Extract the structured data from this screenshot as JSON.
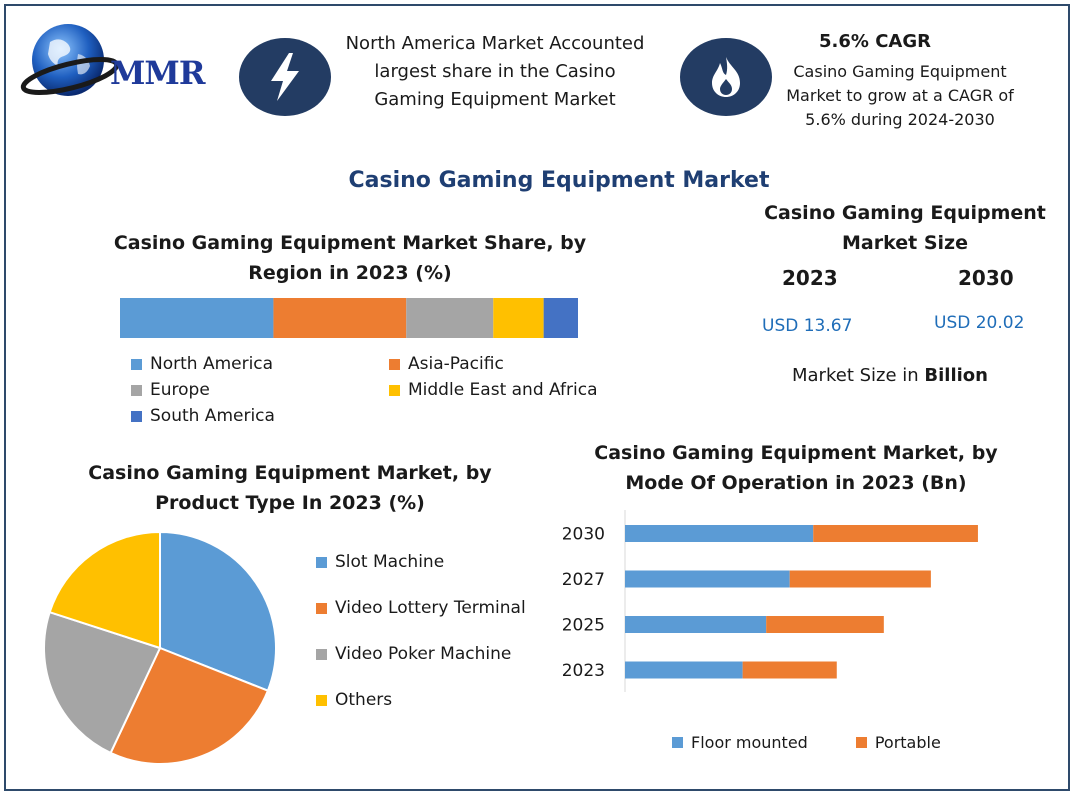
{
  "header": {
    "logo_text": "MMR",
    "region_text": "North America Market Accounted largest share in the Casino Gaming Equipment Market",
    "cagr_title": "5.6% CAGR",
    "cagr_text": "Casino Gaming Equipment Market to grow at a CAGR of 5.6% during 2024-2030",
    "icons": [
      "globe-icon",
      "lightning-icon",
      "flame-icon"
    ]
  },
  "main_title": "Casino Gaming Equipment Market",
  "market_size": {
    "title": "Casino Gaming Equipment Market Size",
    "year1": "2023",
    "year2": "2030",
    "value1": "USD 13.67",
    "value2": "USD 20.02",
    "note_prefix": "Market Size in ",
    "note_bold": "Billion"
  },
  "colors": {
    "north_america": "#5b9bd5",
    "asia_pacific": "#ed7d31",
    "europe": "#a5a5a5",
    "middle_east_africa": "#ffc000",
    "south_america": "#4472c4",
    "icon_circle": "#233c63"
  },
  "chart_data": [
    {
      "type": "bar",
      "orientation": "horizontal-stacked-100",
      "title": "Casino Gaming Equipment Market Share, by Region in 2023 (%)",
      "series": [
        {
          "name": "North America",
          "values": [
            33.5
          ],
          "color": "#5b9bd5"
        },
        {
          "name": "Asia-Pacific",
          "values": [
            29
          ],
          "color": "#ed7d31"
        },
        {
          "name": "Europe",
          "values": [
            19
          ],
          "color": "#a5a5a5"
        },
        {
          "name": "Middle East and Africa",
          "values": [
            11
          ],
          "color": "#ffc000"
        },
        {
          "name": "South America",
          "values": [
            7.5
          ],
          "color": "#4472c4"
        }
      ],
      "legend": "bottom"
    },
    {
      "type": "pie",
      "title": "Casino Gaming Equipment Market, by Product Type In 2023 (%)",
      "slices": [
        {
          "name": "Slot Machine",
          "value": 31,
          "color": "#5b9bd5"
        },
        {
          "name": "Video Lottery Terminal",
          "value": 26,
          "color": "#ed7d31"
        },
        {
          "name": "Video Poker Machine",
          "value": 23,
          "color": "#a5a5a5"
        },
        {
          "name": "Others",
          "value": 20,
          "color": "#ffc000"
        }
      ],
      "legend": "right"
    },
    {
      "type": "bar",
      "orientation": "horizontal-stacked",
      "title": "Casino Gaming Equipment Market, by Mode Of Operation in 2023 (Bn)",
      "categories": [
        "2030",
        "2027",
        "2025",
        "2023"
      ],
      "series": [
        {
          "name": "Floor mounted",
          "values": [
            8.0,
            7.0,
            6.0,
            5.0
          ],
          "color": "#5b9bd5"
        },
        {
          "name": "Portable",
          "values": [
            7.0,
            6.0,
            5.0,
            4.0
          ],
          "color": "#ed7d31"
        }
      ],
      "xlim": [
        0,
        17
      ],
      "grid": false,
      "legend": "bottom"
    }
  ]
}
